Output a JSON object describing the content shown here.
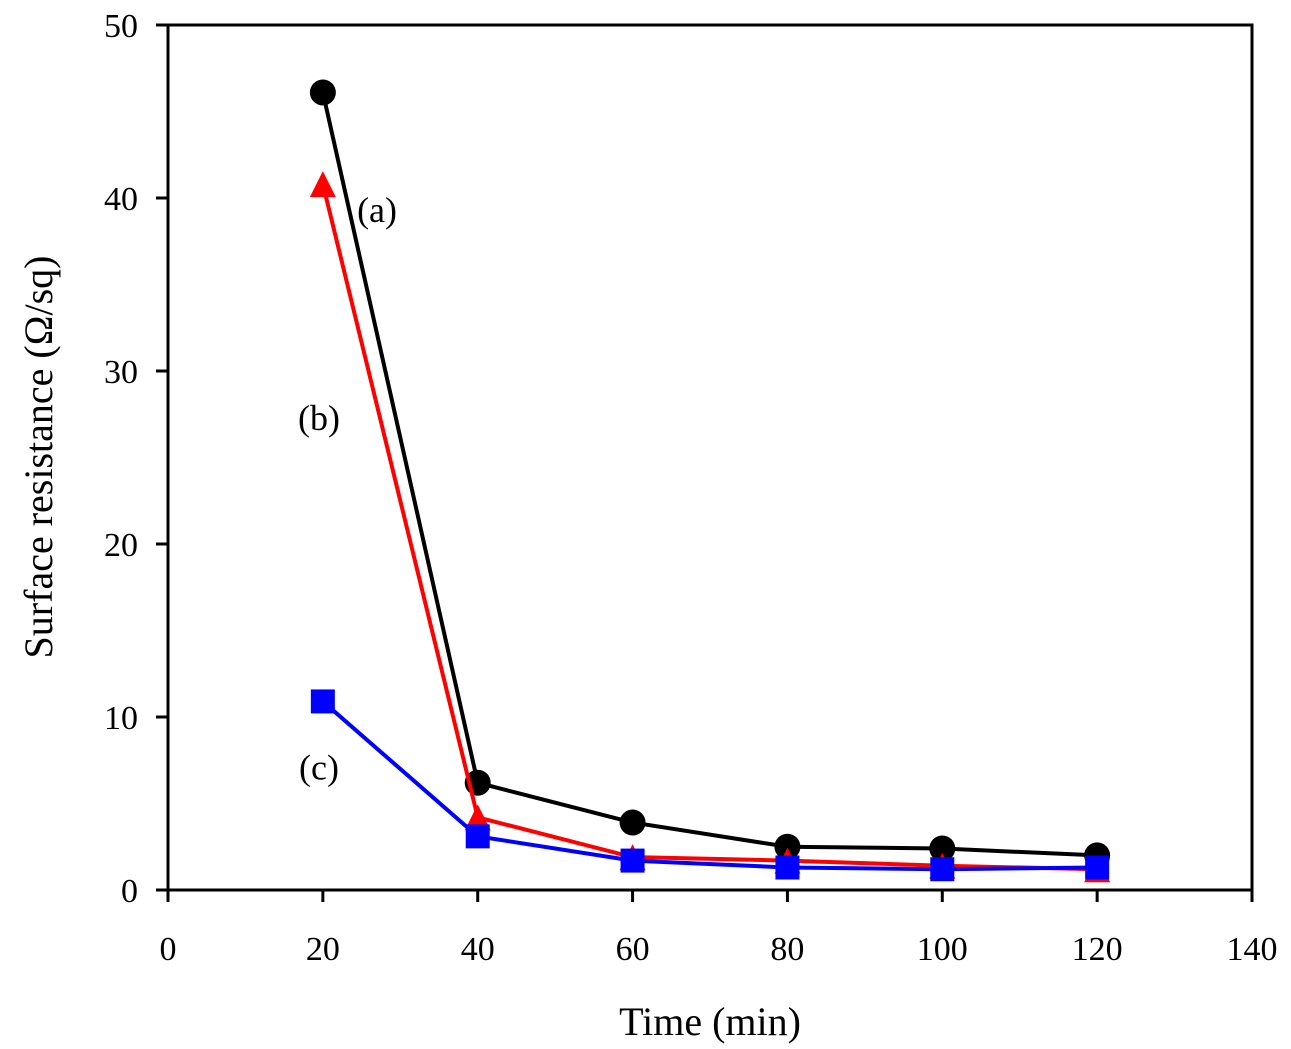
{
  "chart_data": {
    "type": "line",
    "title": "",
    "xlabel": "Time (min)",
    "ylabel": "Surface resistance (Ω/sq)",
    "xlim": [
      0,
      140
    ],
    "ylim": [
      0,
      50
    ],
    "xticks": [
      0,
      20,
      40,
      60,
      80,
      100,
      120,
      140
    ],
    "yticks": [
      0,
      10,
      20,
      30,
      40,
      50
    ],
    "xtick_labels": [
      "0",
      "20",
      "40",
      "60",
      "80",
      "100",
      "120",
      "140"
    ],
    "ytick_labels": [
      "0",
      "10",
      "20",
      "30",
      "40",
      "50"
    ],
    "grid": false,
    "legend": "none",
    "x": [
      20,
      40,
      60,
      80,
      100,
      120
    ],
    "series": [
      {
        "name": "(a)",
        "marker": "circle",
        "color": "#000000",
        "values": [
          46.1,
          6.2,
          3.9,
          2.5,
          2.4,
          2.0
        ]
      },
      {
        "name": "(b)",
        "marker": "triangle",
        "color": "#ff0000",
        "values": [
          40.8,
          4.2,
          1.9,
          1.7,
          1.4,
          1.2
        ]
      },
      {
        "name": "(c)",
        "marker": "square",
        "color": "#0000ff",
        "values": [
          10.9,
          3.1,
          1.7,
          1.3,
          1.2,
          1.3
        ]
      }
    ],
    "annotations": [
      {
        "text": "(a)",
        "series": 0,
        "x": 27,
        "y": 38.6
      },
      {
        "text": "(b)",
        "series": 1,
        "x": 19.5,
        "y": 26.6
      },
      {
        "text": "(c)",
        "series": 2,
        "x": 19.5,
        "y": 6.4
      }
    ]
  }
}
